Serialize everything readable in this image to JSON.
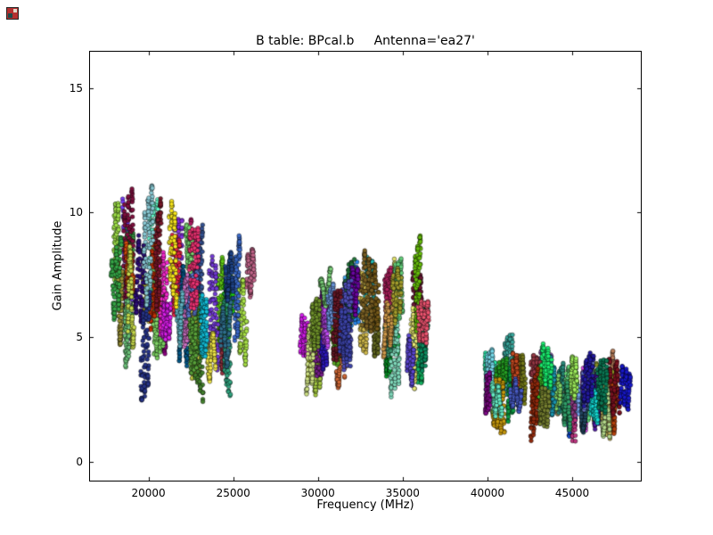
{
  "figure": {
    "background": "#ffffff",
    "axes_edge_color": "#000000",
    "window_icon": "app-icon"
  },
  "chart_data": {
    "type": "scatter",
    "title": "B table: BPcal.b     Antenna='ea27'",
    "xlabel": "Frequency (MHz)",
    "ylabel": "Gain Amplitude",
    "xlim": [
      16500,
      49100
    ],
    "ylim": [
      -0.8,
      16.5
    ],
    "xticks": [
      20000,
      25000,
      30000,
      35000,
      40000,
      45000
    ],
    "yticks": [
      0,
      5,
      10,
      15
    ],
    "grid": false,
    "legend": "none",
    "marker": "circle-with-dark-edge",
    "description": "Bandpass gain amplitude vs frequency; many multicolored per-spectral-window streaks of circular markers in three receiver bands",
    "seed": 7,
    "bands": [
      {
        "x_range": [
          17800,
          26400
        ],
        "amp_range": [
          2.4,
          11.1
        ],
        "typical_base": [
          4.3,
          8.8
        ],
        "streaks": 48,
        "streak_amp_span": [
          1.2,
          3.8
        ],
        "drift": 0
      },
      {
        "x_range": [
          28900,
          37100
        ],
        "amp_range": [
          2.3,
          9.5
        ],
        "typical_base": [
          4.0,
          7.0
        ],
        "streaks": 44,
        "streak_amp_span": [
          1.0,
          3.2
        ],
        "drift": 0
      },
      {
        "x_range": [
          39800,
          48400
        ],
        "amp_range": [
          0.8,
          5.1
        ],
        "typical_base": [
          2.4,
          4.1
        ],
        "streaks": 48,
        "streak_amp_span": [
          0.6,
          2.0
        ],
        "drift": -0.9
      }
    ]
  }
}
